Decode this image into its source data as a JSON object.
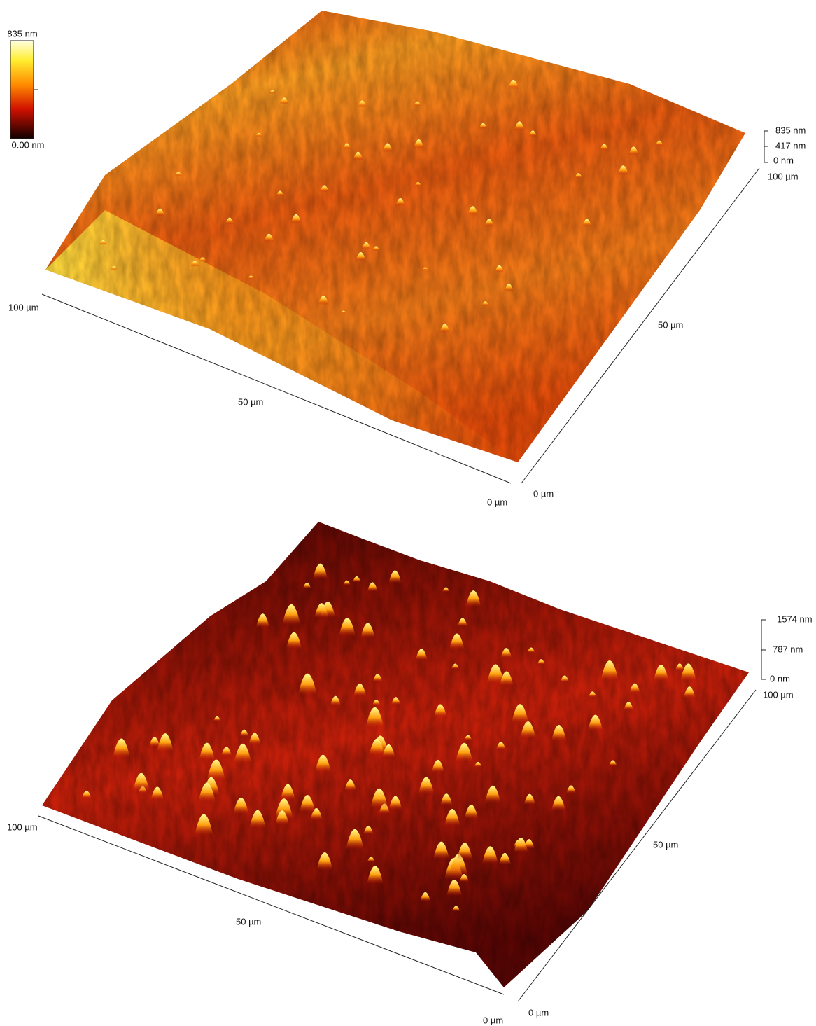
{
  "colorbar": {
    "max_label": "835 nm",
    "min_label": "0.00 nm"
  },
  "panels": [
    {
      "z_axis": [
        "835 nm",
        "417 nm",
        "0 nm"
      ],
      "right_axis": [
        "100 µm",
        "50 µm",
        "0 µm"
      ],
      "front_axis": [
        "100 µm",
        "50 µm",
        "0 µm"
      ]
    },
    {
      "z_axis": [
        "1574 nm",
        "787 nm",
        "0 nm"
      ],
      "right_axis": [
        "100 µm",
        "50 µm",
        "0 µm"
      ],
      "front_axis": [
        "100 µm",
        "50 µm",
        "0 µm"
      ]
    }
  ]
}
